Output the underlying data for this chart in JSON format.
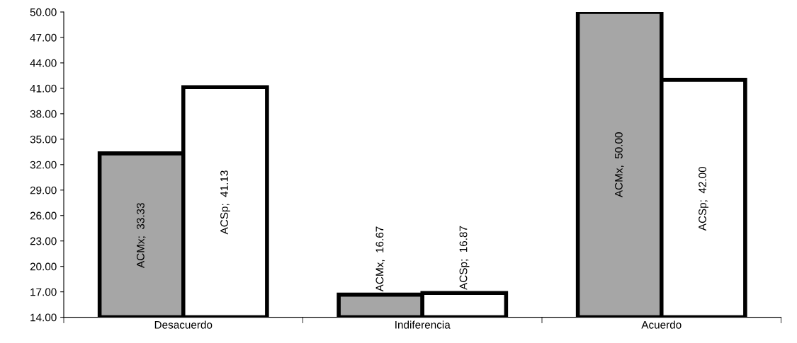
{
  "chart_data": {
    "type": "bar",
    "categories": [
      "Desacuerdo",
      "Indiferencia",
      "Acuerdo"
    ],
    "series": [
      {
        "color": "#a6a6a6",
        "values": [
          33.33,
          16.67,
          50.0
        ],
        "value_labels": [
          "ACMx;  33.33",
          "ACMx,  16.67",
          "ACMx,  50.00"
        ]
      },
      {
        "color": "#ffffff",
        "values": [
          41.13,
          16.87,
          42.0
        ],
        "value_labels": [
          "ACSp;  41.13",
          "ACSp;  16.87",
          "ACSp;  42.00"
        ]
      }
    ],
    "ylim": [
      14,
      50
    ],
    "yticks": [
      {
        "value": 14,
        "label": "14.00"
      },
      {
        "value": 17,
        "label": "17.00"
      },
      {
        "value": 20,
        "label": "20.00"
      },
      {
        "value": 23,
        "label": "23.00"
      },
      {
        "value": 26,
        "label": "26.00"
      },
      {
        "value": 29,
        "label": "29.00"
      },
      {
        "value": 32,
        "label": "32.00"
      },
      {
        "value": 35,
        "label": "35.00"
      },
      {
        "value": 38,
        "label": "38.00"
      },
      {
        "value": 41,
        "label": "41.00"
      },
      {
        "value": 44,
        "label": "44.00"
      },
      {
        "value": 47,
        "label": "47.00"
      },
      {
        "value": 50,
        "label": "50.00"
      }
    ],
    "grid": false,
    "legend": false
  }
}
